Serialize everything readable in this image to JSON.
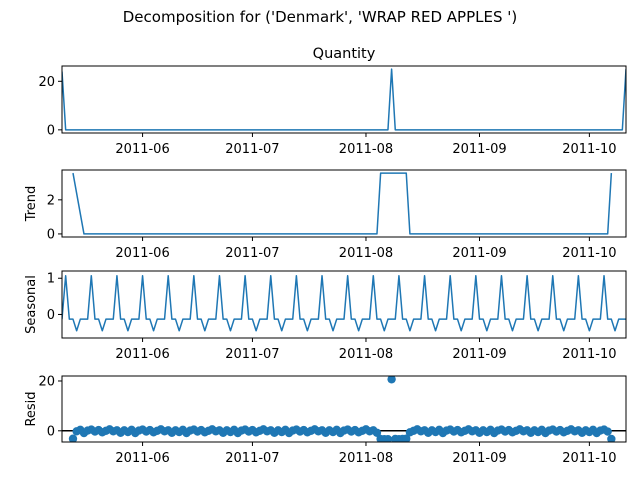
{
  "suptitle": "Decomposition for ('Denmark', 'WRAP RED APPLES ')",
  "colors": {
    "line": "#1f77b4",
    "axis": "#000000",
    "zero_line": "#000000"
  },
  "chart_data": [
    {
      "type": "line",
      "title": "Quantity",
      "ylabel": "",
      "xlim": [
        "2011-05-10",
        "2011-10-11"
      ],
      "ylim": [
        -1.3,
        26.3
      ],
      "yticks": [
        0,
        20
      ],
      "xticks": [
        "2011-06",
        "2011-07",
        "2011-08",
        "2011-09",
        "2011-10"
      ],
      "points": [
        [
          "2011-05-10",
          24
        ],
        [
          "2011-05-11",
          0
        ],
        [
          "2011-08-07",
          0
        ],
        [
          "2011-08-08",
          25
        ],
        [
          "2011-08-09",
          0
        ],
        [
          "2011-10-10",
          0
        ],
        [
          "2011-10-11",
          25
        ]
      ]
    },
    {
      "type": "line",
      "title": "",
      "ylabel": "Trend",
      "xlim": [
        "2011-05-10",
        "2011-10-11"
      ],
      "ylim": [
        -0.18,
        3.75
      ],
      "yticks": [
        0,
        2
      ],
      "xticks": [
        "2011-06",
        "2011-07",
        "2011-08",
        "2011-09",
        "2011-10"
      ],
      "points": [
        [
          "2011-05-13",
          3.57
        ],
        [
          "2011-05-16",
          0
        ],
        [
          "2011-08-04",
          0
        ],
        [
          "2011-08-05",
          3.57
        ],
        [
          "2011-08-12",
          3.57
        ],
        [
          "2011-08-13",
          0
        ],
        [
          "2011-10-06",
          0
        ],
        [
          "2011-10-07",
          3.57
        ]
      ]
    },
    {
      "type": "line",
      "title": "",
      "ylabel": "Seasonal",
      "xlim": [
        "2011-05-10",
        "2011-10-11"
      ],
      "ylim": [
        -0.65,
        1.2
      ],
      "yticks": [
        0,
        1
      ],
      "xticks": [
        "2011-06",
        "2011-07",
        "2011-08",
        "2011-09",
        "2011-10"
      ],
      "start": "2011-05-10",
      "end": "2011-10-11",
      "period": 7,
      "pattern": [
        1.07,
        -0.13,
        -0.13,
        -0.45,
        -0.13,
        -0.13,
        -0.13
      ],
      "pattern_offset": 6
    },
    {
      "type": "scatter",
      "title": "",
      "ylabel": "Resid",
      "xlim": [
        "2011-05-10",
        "2011-10-11"
      ],
      "ylim": [
        -4.5,
        22
      ],
      "yticks": [
        0,
        20
      ],
      "xticks": [
        "2011-06",
        "2011-07",
        "2011-08",
        "2011-09",
        "2011-10"
      ],
      "zero_line": true,
      "start": "2011-05-13",
      "end": "2011-10-07",
      "default_values": [
        0.2,
        -0.5,
        0.4,
        -0.9,
        0.1,
        0.5,
        -0.3,
        0.3,
        -0.6,
        0.0,
        0.6,
        -0.2,
        0.2,
        -0.8
      ],
      "overrides": [
        [
          "2011-05-13",
          -3.2
        ],
        [
          "2011-05-14",
          -0.2
        ],
        [
          "2011-08-05",
          -3.3
        ],
        [
          "2011-08-06",
          -3.4
        ],
        [
          "2011-08-07",
          -3.4
        ],
        [
          "2011-08-08",
          20.7
        ],
        [
          "2011-08-09",
          -3.3
        ],
        [
          "2011-08-10",
          -3.4
        ],
        [
          "2011-08-11",
          -3.3
        ],
        [
          "2011-08-12",
          -3.2
        ],
        [
          "2011-10-07",
          -3.3
        ]
      ]
    }
  ]
}
